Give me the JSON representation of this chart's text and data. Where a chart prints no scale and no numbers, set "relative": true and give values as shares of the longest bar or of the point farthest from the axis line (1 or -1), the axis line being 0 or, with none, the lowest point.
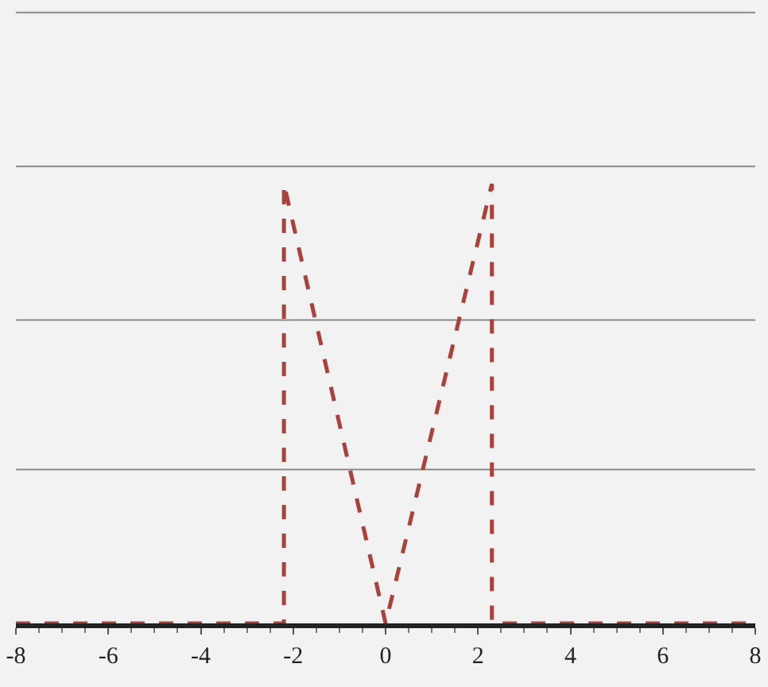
{
  "chart_data": {
    "type": "line",
    "relative": true,
    "x": [
      -8,
      -2.2,
      -2.2,
      0,
      2.3,
      2.3,
      8
    ],
    "series": [
      {
        "color": "#a8423a",
        "values": [
          0,
          0,
          1,
          0,
          1,
          0,
          0
        ]
      }
    ],
    "xlim": [
      -8,
      8
    ],
    "xticks": [
      -8,
      -6,
      -4,
      -2,
      0,
      2,
      4,
      6,
      8
    ],
    "tick_labels": "x",
    "marker": "none",
    "line_style": "dashed",
    "ref_lines": [
      {
        "axis": "y",
        "value": 0.35,
        "color": "#888888"
      },
      {
        "axis": "y",
        "value": 0.69,
        "color": "#888888"
      },
      {
        "axis": "y",
        "value": 1.04,
        "color": "#888888"
      },
      {
        "axis": "y",
        "value": 1.39,
        "color": "#888888"
      }
    ]
  }
}
